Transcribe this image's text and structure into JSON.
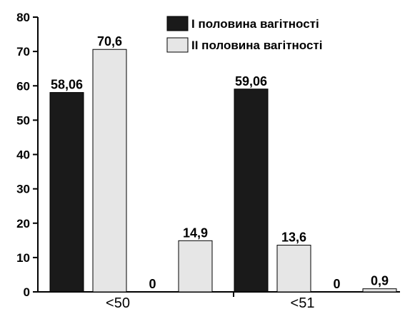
{
  "chart_data": {
    "type": "bar",
    "categories": [
      "<50",
      "<51"
    ],
    "series": [
      {
        "name": "I половина вагітності",
        "color": "#1a1a1a",
        "values": [
          58.06,
          59.06
        ],
        "labels": [
          "58,06",
          "59,06"
        ]
      },
      {
        "name": "II половина вагітності",
        "color": "#e6e6e6",
        "values": [
          70.6,
          13.6
        ],
        "labels": [
          "70,6",
          "13,6"
        ]
      },
      {
        "name": "",
        "color": "#1a1a1a",
        "values": [
          0,
          0
        ],
        "labels": [
          "0",
          "0"
        ]
      },
      {
        "name": "",
        "color": "#e6e6e6",
        "values": [
          14.9,
          0.9
        ],
        "labels": [
          "14,9",
          "0,9"
        ]
      }
    ],
    "ylim": [
      0,
      80
    ],
    "yticks": [
      0,
      10,
      20,
      30,
      40,
      50,
      60,
      70,
      80
    ],
    "title": "",
    "xlabel": "",
    "ylabel": "",
    "grid": false,
    "legend_position": "top-right"
  }
}
